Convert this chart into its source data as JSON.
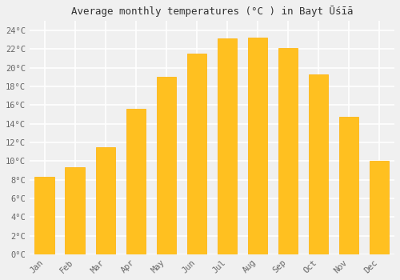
{
  "months": [
    "Jan",
    "Feb",
    "Mar",
    "Apr",
    "May",
    "Jun",
    "Jul",
    "Aug",
    "Sep",
    "Oct",
    "Nov",
    "Dec"
  ],
  "values": [
    8.3,
    9.3,
    11.5,
    15.6,
    19.0,
    21.5,
    23.1,
    23.2,
    22.1,
    19.3,
    14.7,
    10.0
  ],
  "bar_color": "#FFC020",
  "bar_edge_color": "#FFB000",
  "title": "Average monthly temperatures (°C ) in Bayt Ūśīā",
  "ylim": [
    0,
    25
  ],
  "yticks": [
    0,
    2,
    4,
    6,
    8,
    10,
    12,
    14,
    16,
    18,
    20,
    22,
    24
  ],
  "ytick_labels": [
    "0°C",
    "2°C",
    "4°C",
    "6°C",
    "8°C",
    "10°C",
    "12°C",
    "14°C",
    "16°C",
    "18°C",
    "20°C",
    "22°C",
    "24°C"
  ],
  "background_color": "#f0f0f0",
  "grid_color": "#ffffff",
  "title_fontsize": 9,
  "tick_fontsize": 7.5,
  "font_family": "monospace",
  "bar_width": 0.65
}
